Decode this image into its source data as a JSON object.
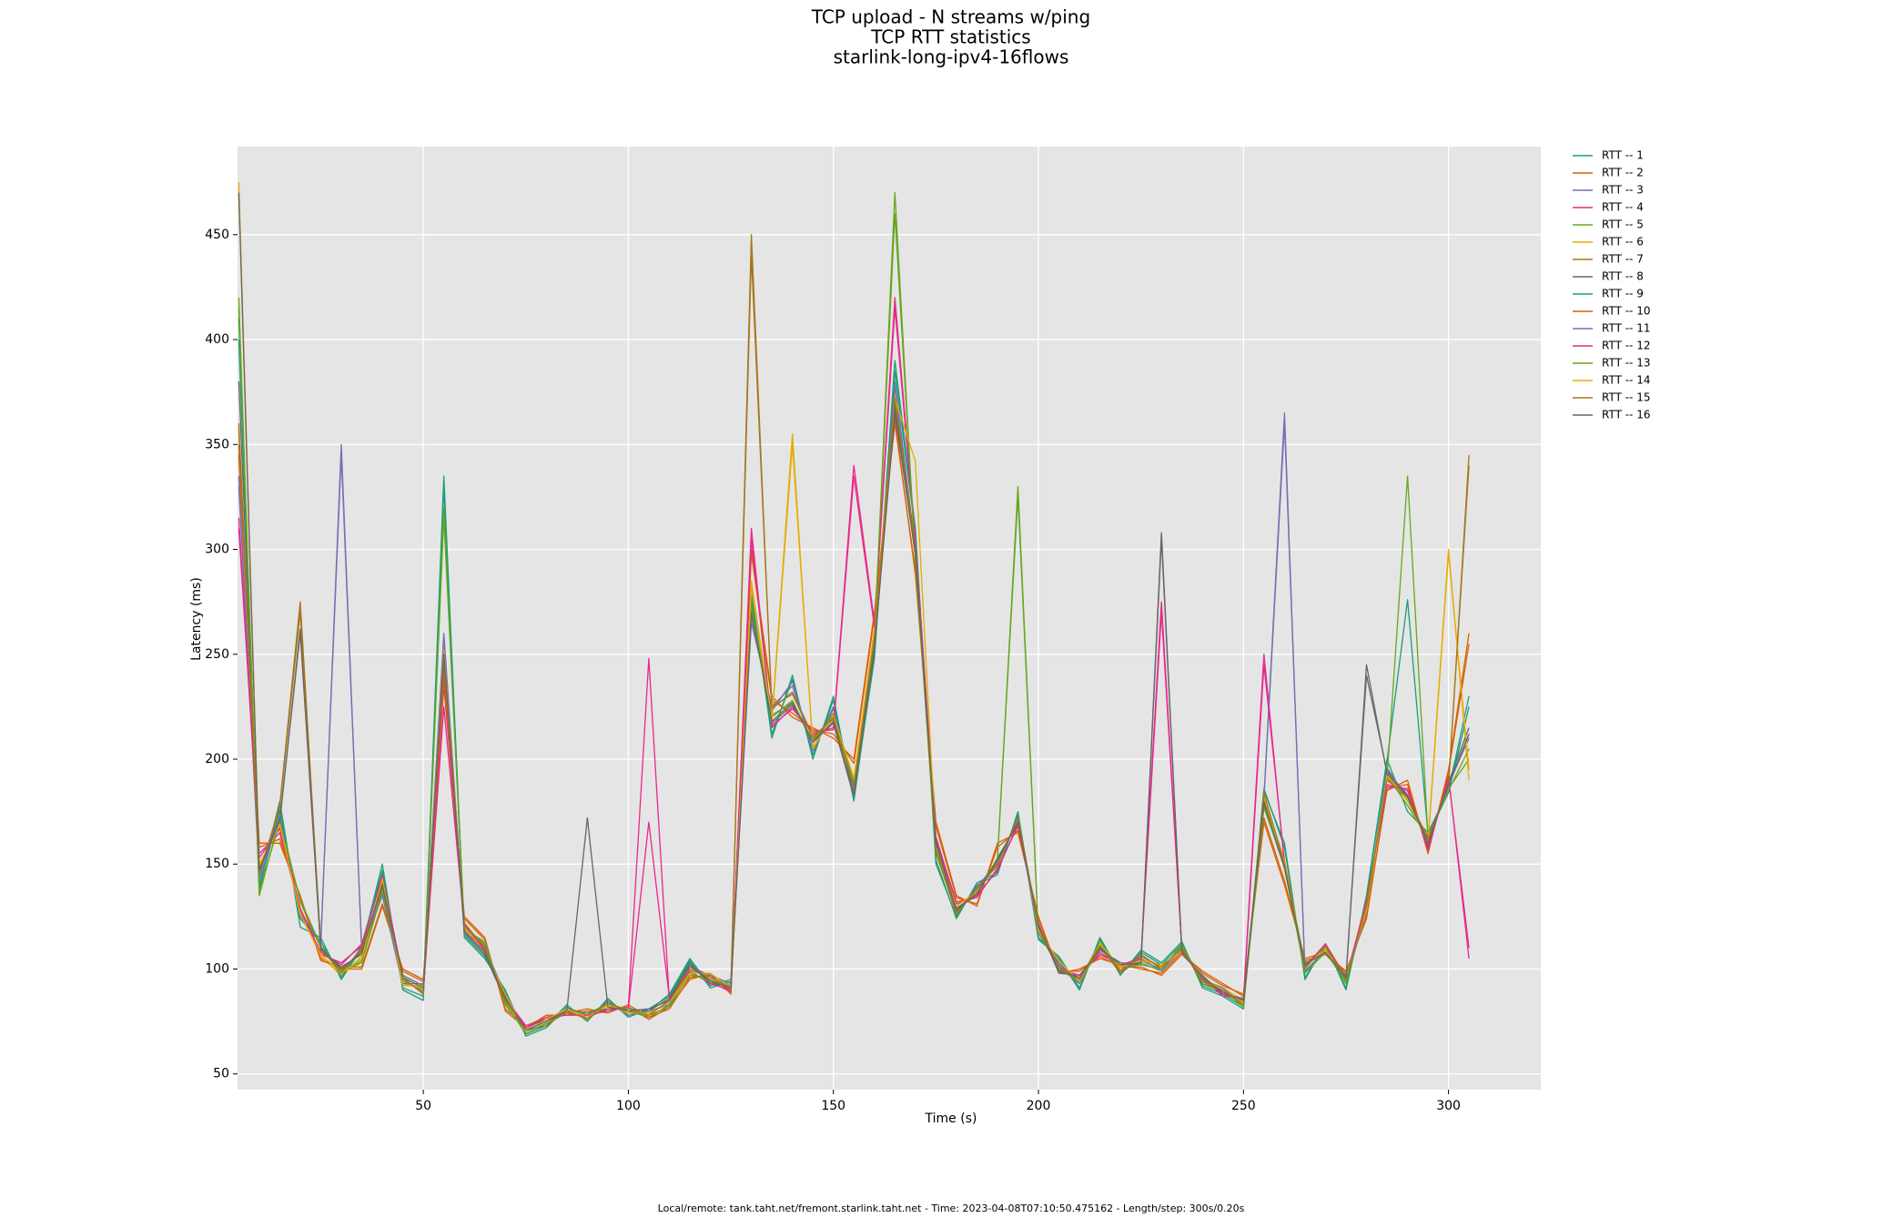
{
  "chart_data": {
    "type": "line",
    "title": "TCP upload - N streams w/ping",
    "subtitle": [
      "TCP RTT statistics",
      "starlink-long-ipv4-16flows"
    ],
    "x_label": "Time (s)",
    "y_label": "Latency (ms)",
    "footnote": "Local/remote: tank.taht.net/fremont.starlink.taht.net - Time: 2023-04-08T07:10:50.475162 - Length/step: 300s/0.20s",
    "grid": true,
    "legend": "right",
    "background": "#e5e5e5",
    "xlim": [
      4.7,
      322.5
    ],
    "ylim": [
      42.5,
      492
    ],
    "xticks": [
      50,
      100,
      150,
      200,
      250,
      300
    ],
    "yticks": [
      50,
      100,
      150,
      200,
      250,
      300,
      350,
      400,
      450
    ],
    "x": [
      5,
      10,
      15,
      20,
      25,
      30,
      35,
      40,
      45,
      50,
      55,
      60,
      65,
      70,
      75,
      80,
      85,
      90,
      95,
      100,
      105,
      110,
      115,
      120,
      125,
      130,
      135,
      140,
      145,
      150,
      155,
      160,
      165,
      170,
      175,
      180,
      185,
      190,
      195,
      200,
      205,
      210,
      215,
      220,
      225,
      230,
      235,
      240,
      245,
      250,
      255,
      260,
      265,
      270,
      275,
      280,
      285,
      290,
      295,
      300,
      305
    ],
    "series": [
      {
        "name": "RTT -- 1",
        "color": "#1b9e77",
        "values": [
          400,
          140,
          180,
          120,
          115,
          95,
          110,
          150,
          90,
          85,
          330,
          115,
          105,
          90,
          68,
          72,
          82,
          76,
          85,
          78,
          80,
          88,
          105,
          92,
          95,
          280,
          210,
          240,
          200,
          230,
          180,
          250,
          390,
          310,
          150,
          125,
          140,
          145,
          175,
          115,
          105,
          90,
          115,
          98,
          108,
          102,
          112,
          92,
          88,
          82,
          185,
          160,
          95,
          112,
          90,
          135,
          200,
          175,
          165,
          185,
          230
        ]
      },
      {
        "name": "RTT -- 2",
        "color": "#d95f02",
        "values": [
          350,
          160,
          160,
          135,
          105,
          100,
          100,
          130,
          100,
          95,
          240,
          125,
          115,
          80,
          72,
          78,
          78,
          80,
          80,
          82,
          76,
          82,
          95,
          98,
          88,
          300,
          230,
          220,
          215,
          210,
          200,
          270,
          360,
          290,
          170,
          135,
          130,
          160,
          165,
          125,
          98,
          100,
          105,
          102,
          100,
          98,
          108,
          98,
          92,
          88,
          170,
          140,
          105,
          108,
          98,
          125,
          185,
          190,
          155,
          195,
          260
        ]
      },
      {
        "name": "RTT -- 3",
        "color": "#7570b3",
        "values": [
          330,
          145,
          175,
          125,
          112,
          350,
          108,
          135,
          92,
          92,
          260,
          118,
          110,
          88,
          70,
          74,
          80,
          79,
          83,
          79,
          79,
          84,
          102,
          96,
          92,
          265,
          225,
          235,
          205,
          225,
          185,
          255,
          380,
          300,
          158,
          128,
          138,
          150,
          172,
          118,
          102,
          94,
          112,
          99,
          104,
          100,
          110,
          94,
          90,
          84,
          182,
          365,
          98,
          110,
          94,
          128,
          195,
          182,
          160,
          188,
          210
        ]
      },
      {
        "name": "RTT -- 4",
        "color": "#e7298a",
        "values": [
          310,
          155,
          165,
          128,
          108,
          102,
          112,
          145,
          96,
          88,
          235,
          122,
          108,
          86,
          73,
          76,
          79,
          77,
          81,
          81,
          170,
          86,
          98,
          94,
          89,
          310,
          215,
          225,
          212,
          215,
          340,
          265,
          420,
          305,
          162,
          132,
          134,
          148,
          168,
          122,
          99,
          96,
          108,
          101,
          106,
          275,
          108,
          96,
          87,
          86,
          250,
          150,
          102,
          111,
          96,
          132,
          188,
          185,
          158,
          192,
          105
        ]
      },
      {
        "name": "RTT -- 5",
        "color": "#66a61e",
        "values": [
          420,
          135,
          172,
          132,
          110,
          98,
          104,
          138,
          94,
          90,
          320,
          120,
          112,
          84,
          69,
          73,
          81,
          78,
          84,
          80,
          77,
          83,
          97,
          95,
          91,
          275,
          220,
          228,
          208,
          222,
          188,
          258,
          460,
          295,
          155,
          127,
          137,
          152,
          330,
          117,
          101,
          93,
          111,
          100,
          103,
          99,
          112,
          93,
          89,
          83,
          178,
          148,
          99,
          109,
          93,
          130,
          192,
          178,
          162,
          186,
          200
        ]
      },
      {
        "name": "RTT -- 6",
        "color": "#e6ab02",
        "values": [
          470,
          150,
          168,
          127,
          106,
          97,
          106,
          142,
          93,
          91,
          255,
          119,
          109,
          87,
          71,
          75,
          80,
          78,
          82,
          80,
          78,
          85,
          99,
          97,
          90,
          285,
          218,
          350,
          206,
          220,
          190,
          262,
          375,
          298,
          157,
          129,
          136,
          151,
          171,
          119,
          103,
          95,
          113,
          100,
          105,
          101,
          109,
          95,
          91,
          85,
          181,
          152,
          101,
          110,
          95,
          129,
          193,
          180,
          161,
          300,
          190
        ]
      },
      {
        "name": "RTT -- 7",
        "color": "#a6761d",
        "values": [
          360,
          145,
          178,
          275,
          111,
          99,
          109,
          139,
          95,
          89,
          245,
          121,
          111,
          86,
          70,
          74,
          79,
          77,
          83,
          79,
          79,
          84,
          101,
          95,
          90,
          450,
          224,
          232,
          211,
          219,
          187,
          257,
          370,
          302,
          156,
          126,
          139,
          149,
          173,
          120,
          100,
          94,
          110,
          99,
          107,
          100,
          111,
          94,
          89,
          84,
          183,
          151,
          100,
          112,
          96,
          131,
          191,
          181,
          163,
          187,
          345
        ]
      },
      {
        "name": "RTT -- 8",
        "color": "#666666",
        "values": [
          380,
          148,
          170,
          262,
          109,
          101,
          107,
          141,
          97,
          92,
          248,
          117,
          107,
          85,
          72,
          76,
          81,
          79,
          81,
          81,
          80,
          86,
          103,
          93,
          92,
          272,
          217,
          226,
          209,
          217,
          182,
          252,
          368,
          297,
          161,
          129,
          135,
          153,
          169,
          121,
          98,
          97,
          109,
          103,
          102,
          308,
          107,
          97,
          88,
          86,
          179,
          149,
          103,
          107,
          97,
          240,
          194,
          183,
          159,
          189,
          215
        ]
      },
      {
        "name": "RTT -- 9",
        "color": "#1b9e77",
        "values": [
          410,
          138,
          176,
          124,
          113,
          96,
          111,
          147,
          91,
          87,
          335,
          116,
          106,
          89,
          69,
          73,
          83,
          75,
          86,
          77,
          81,
          87,
          104,
          91,
          94,
          278,
          212,
          238,
          202,
          228,
          182,
          248,
          385,
          308,
          152,
          124,
          141,
          146,
          174,
          114,
          106,
          91,
          114,
          97,
          109,
          103,
          113,
          91,
          87,
          81,
          186,
          158,
          96,
          111,
          91,
          134,
          199,
          276,
          164,
          184,
          225
        ]
      },
      {
        "name": "RTT -- 10",
        "color": "#d95f02",
        "values": [
          345,
          158,
          162,
          134,
          104,
          101,
          101,
          131,
          99,
          94,
          238,
          124,
          114,
          81,
          73,
          77,
          79,
          81,
          79,
          83,
          77,
          81,
          96,
          97,
          89,
          298,
          228,
          222,
          214,
          212,
          198,
          268,
          362,
          288,
          168,
          134,
          131,
          158,
          166,
          124,
          99,
          99,
          106,
          101,
          101,
          97,
          107,
          99,
          93,
          87,
          172,
          142,
          104,
          107,
          99,
          124,
          186,
          188,
          156,
          194,
          255
        ]
      },
      {
        "name": "RTT -- 11",
        "color": "#7570b3",
        "values": [
          335,
          143,
          173,
          126,
          113,
          345,
          109,
          136,
          93,
          93,
          258,
          117,
          111,
          87,
          71,
          75,
          81,
          78,
          84,
          78,
          80,
          83,
          101,
          97,
          93,
          268,
          223,
          237,
          204,
          224,
          187,
          254,
          378,
          299,
          157,
          127,
          139,
          151,
          171,
          117,
          103,
          93,
          111,
          98,
          105,
          99,
          109,
          95,
          91,
          83,
          181,
          360,
          99,
          109,
          95,
          127,
          196,
          181,
          161,
          187,
          212
        ]
      },
      {
        "name": "RTT -- 12",
        "color": "#e7298a",
        "values": [
          315,
          153,
          167,
          129,
          107,
          103,
          111,
          144,
          95,
          89,
          225,
          121,
          109,
          87,
          72,
          77,
          78,
          78,
          80,
          82,
          248,
          85,
          99,
          93,
          90,
          305,
          216,
          224,
          213,
          214,
          335,
          263,
          415,
          304,
          163,
          131,
          135,
          147,
          169,
          121,
          100,
          97,
          107,
          102,
          105,
          270,
          109,
          95,
          88,
          85,
          245,
          151,
          101,
          112,
          95,
          133,
          187,
          186,
          157,
          191,
          110
        ]
      },
      {
        "name": "RTT -- 13",
        "color": "#66a61e",
        "values": [
          415,
          137,
          170,
          133,
          111,
          99,
          103,
          137,
          95,
          89,
          315,
          119,
          113,
          83,
          70,
          74,
          80,
          79,
          83,
          81,
          78,
          82,
          98,
          94,
          92,
          272,
          221,
          227,
          209,
          221,
          189,
          257,
          470,
          294,
          156,
          128,
          136,
          153,
          325,
          118,
          100,
          94,
          110,
          101,
          102,
          100,
          111,
          94,
          90,
          82,
          177,
          149,
          98,
          108,
          94,
          131,
          191,
          335,
          163,
          185,
          205
        ]
      },
      {
        "name": "RTT -- 14",
        "color": "#e6ab02",
        "values": [
          475,
          149,
          169,
          126,
          107,
          98,
          105,
          143,
          92,
          92,
          252,
          120,
          108,
          88,
          70,
          76,
          81,
          77,
          83,
          79,
          79,
          84,
          98,
          98,
          91,
          282,
          219,
          355,
          205,
          221,
          191,
          260,
          372,
          342,
          158,
          130,
          137,
          150,
          172,
          118,
          104,
          94,
          112,
          101,
          104,
          102,
          108,
          96,
          90,
          84,
          182,
          151,
          102,
          109,
          96,
          128,
          192,
          181,
          160,
          298,
          195
        ]
      },
      {
        "name": "RTT -- 15",
        "color": "#a6761d",
        "values": [
          358,
          146,
          177,
          270,
          110,
          98,
          110,
          140,
          96,
          88,
          247,
          122,
          110,
          85,
          71,
          73,
          80,
          76,
          84,
          80,
          78,
          85,
          100,
          96,
          91,
          440,
          225,
          231,
          210,
          220,
          186,
          258,
          372,
          301,
          157,
          127,
          138,
          150,
          172,
          121,
          101,
          95,
          111,
          98,
          106,
          101,
          110,
          93,
          90,
          83,
          184,
          150,
          101,
          111,
          95,
          130,
          190,
          182,
          162,
          188,
          340
        ]
      },
      {
        "name": "RTT -- 16",
        "color": "#666666",
        "values": [
          470,
          147,
          171,
          260,
          110,
          100,
          108,
          140,
          96,
          91,
          250,
          118,
          108,
          86,
          71,
          75,
          80,
          172,
          82,
          80,
          81,
          85,
          102,
          94,
          91,
          270,
          218,
          227,
          208,
          218,
          183,
          253,
          365,
          298,
          160,
          128,
          136,
          152,
          170,
          120,
          99,
          96,
          110,
          102,
          103,
          305,
          108,
          96,
          89,
          85,
          180,
          148,
          102,
          108,
          96,
          245,
          193,
          182,
          160,
          188,
          212
        ]
      }
    ]
  }
}
